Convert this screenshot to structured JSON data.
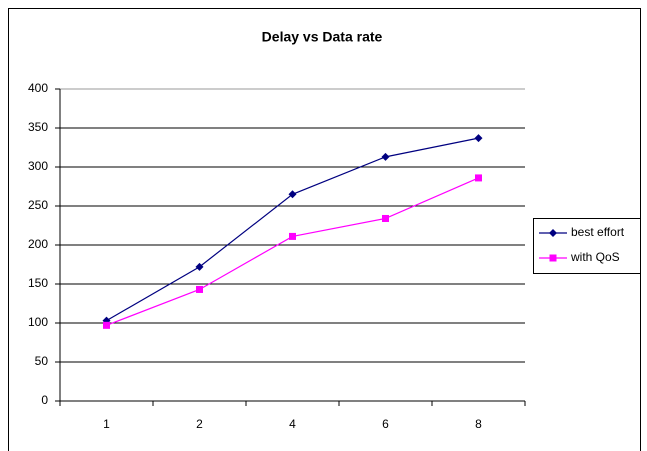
{
  "chart_data": {
    "type": "line",
    "title": "Delay vs Data rate",
    "categories": [
      "1",
      "2",
      "4",
      "6",
      "8"
    ],
    "series": [
      {
        "name": "best effort",
        "color": "#000080",
        "marker": "diamond",
        "values": [
          103,
          172,
          265,
          313,
          337
        ]
      },
      {
        "name": "with QoS",
        "color": "#ff00ff",
        "marker": "square",
        "values": [
          97,
          143,
          211,
          234,
          286
        ]
      }
    ],
    "ylim": [
      0,
      400
    ],
    "yticks": [
      0,
      50,
      100,
      150,
      200,
      250,
      300,
      350,
      400
    ],
    "grid": true,
    "legend": "right"
  }
}
